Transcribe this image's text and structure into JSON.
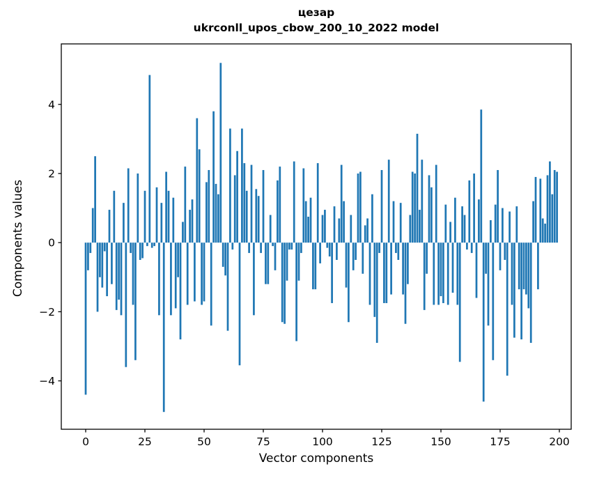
{
  "figure": {
    "title_line1": "цезар",
    "title_line2": "ukrconll_upos_cbow_200_10_2022 model",
    "xlabel": "Vector components",
    "ylabel": "Components values"
  },
  "chart_data": {
    "type": "bar",
    "title": "цезар",
    "subtitle": "ukrconll_upos_cbow_200_10_2022 model",
    "xlabel": "Vector components",
    "ylabel": "Components values",
    "bar_color": "#1f77b4",
    "axis_color": "#000000",
    "background_color": "#ffffff",
    "grid": false,
    "legend": false,
    "x_description": "vector component index, 0 to 199 (bar at x = index)",
    "x_ticks": [
      0,
      25,
      50,
      75,
      100,
      125,
      150,
      175,
      200
    ],
    "y_ticks": [
      -4,
      -2,
      0,
      2,
      4
    ],
    "xlim": [
      -10.3,
      205.0
    ],
    "ylim": [
      -5.4,
      5.75
    ],
    "bar_width": 0.8,
    "values": [
      -4.4,
      -0.8,
      -0.3,
      1.0,
      2.5,
      -2.0,
      -1.0,
      -1.3,
      -0.25,
      -1.55,
      0.95,
      -1.2,
      1.5,
      -1.95,
      -1.65,
      -2.1,
      1.15,
      -3.6,
      2.15,
      -0.3,
      -1.8,
      -3.4,
      2.0,
      -0.5,
      -0.45,
      1.5,
      -0.1,
      4.85,
      -0.15,
      -0.1,
      1.6,
      -2.1,
      1.15,
      -4.9,
      2.05,
      1.5,
      -2.1,
      1.3,
      -1.9,
      -1.0,
      -2.8,
      0.6,
      2.2,
      -1.8,
      0.95,
      1.25,
      -1.7,
      3.6,
      2.7,
      -1.8,
      -1.7,
      1.75,
      2.1,
      -2.4,
      3.8,
      1.7,
      1.4,
      5.2,
      -0.7,
      -0.95,
      -2.55,
      3.3,
      -0.2,
      1.95,
      2.65,
      -3.55,
      3.3,
      2.3,
      1.5,
      -0.3,
      2.25,
      -2.1,
      1.55,
      1.35,
      -0.3,
      2.1,
      -1.2,
      -1.2,
      0.8,
      -0.1,
      -0.8,
      1.8,
      2.2,
      -2.3,
      -2.35,
      -1.1,
      -0.2,
      -0.2,
      2.35,
      -2.85,
      -1.1,
      -0.3,
      2.15,
      1.2,
      0.75,
      1.3,
      -1.35,
      -1.35,
      2.3,
      -0.6,
      0.8,
      0.95,
      -0.15,
      -0.4,
      -1.75,
      1.05,
      -0.5,
      0.7,
      2.25,
      1.2,
      -1.3,
      -2.3,
      0.8,
      -0.8,
      -0.5,
      2.0,
      2.05,
      -0.9,
      0.5,
      0.7,
      -1.8,
      1.4,
      -2.15,
      -2.9,
      -0.3,
      2.1,
      -1.75,
      -1.75,
      2.4,
      -1.5,
      1.2,
      -0.3,
      -0.5,
      1.15,
      -1.5,
      -2.35,
      -1.2,
      0.8,
      2.05,
      2.0,
      3.15,
      0.95,
      2.4,
      -1.95,
      -0.9,
      1.95,
      1.6,
      -1.8,
      2.25,
      -1.8,
      -1.55,
      -1.75,
      1.1,
      -1.8,
      0.6,
      -1.45,
      1.3,
      -1.8,
      -3.45,
      1.05,
      0.8,
      -0.2,
      1.8,
      -0.3,
      2.0,
      -1.6,
      1.25,
      3.85,
      -4.6,
      -0.9,
      -2.4,
      0.65,
      -3.4,
      1.1,
      2.1,
      -0.8,
      1.0,
      -0.5,
      -3.85,
      0.9,
      -1.8,
      -2.75,
      1.05,
      -1.35,
      -2.8,
      -1.35,
      -1.5,
      -1.9,
      -2.9,
      1.2,
      1.9,
      -1.35,
      1.85,
      0.7,
      0.55,
      1.95,
      2.35,
      1.4,
      2.1,
      2.05
    ]
  }
}
